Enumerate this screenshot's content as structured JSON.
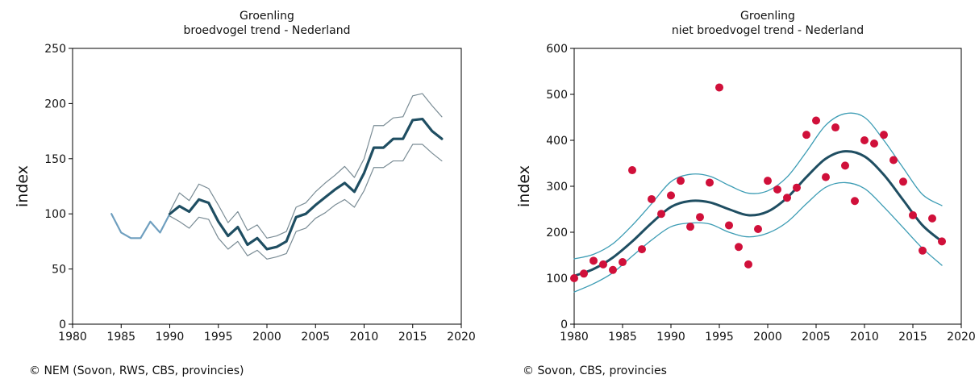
{
  "chart_data": [
    {
      "type": "line",
      "title": "Groenling",
      "subtitle": "broedvogel trend - Nederland",
      "xlabel": "",
      "ylabel": "index",
      "xlim": [
        1980,
        2020
      ],
      "ylim": [
        0,
        250
      ],
      "xticks": [
        1980,
        1985,
        1990,
        1995,
        2000,
        2005,
        2010,
        2015,
        2020
      ],
      "yticks": [
        0,
        50,
        100,
        150,
        200,
        250
      ],
      "grid": false,
      "colors": {
        "pre": "#6f9fbf",
        "index": "#1f4e62",
        "bounds": "#7a8c95"
      },
      "series": [
        {
          "role": "index-early",
          "x": [
            1984,
            1985,
            1986,
            1987,
            1988,
            1989,
            1990
          ],
          "y": [
            100,
            83,
            78,
            78,
            93,
            83,
            100
          ]
        },
        {
          "role": "index",
          "x": [
            1990,
            1991,
            1992,
            1993,
            1994,
            1995,
            1996,
            1997,
            1998,
            1999,
            2000,
            2001,
            2002,
            2003,
            2004,
            2005,
            2006,
            2007,
            2008,
            2009,
            2010,
            2011,
            2012,
            2013,
            2014,
            2015,
            2016,
            2017,
            2018
          ],
          "y": [
            100,
            107,
            102,
            113,
            110,
            93,
            80,
            88,
            72,
            78,
            68,
            70,
            75,
            97,
            100,
            108,
            115,
            122,
            128,
            120,
            137,
            160,
            160,
            168,
            168,
            185,
            186,
            175,
            168
          ]
        },
        {
          "role": "upper",
          "x": [
            1990,
            1991,
            1992,
            1993,
            1994,
            1995,
            1996,
            1997,
            1998,
            1999,
            2000,
            2001,
            2002,
            2003,
            2004,
            2005,
            2006,
            2007,
            2008,
            2009,
            2010,
            2011,
            2012,
            2013,
            2014,
            2015,
            2016,
            2017,
            2018
          ],
          "y": [
            102,
            119,
            112,
            127,
            123,
            108,
            92,
            102,
            85,
            90,
            78,
            80,
            84,
            106,
            110,
            120,
            128,
            135,
            143,
            133,
            150,
            180,
            180,
            187,
            188,
            207,
            209,
            198,
            188
          ]
        },
        {
          "role": "lower",
          "x": [
            1990,
            1991,
            1992,
            1993,
            1994,
            1995,
            1996,
            1997,
            1998,
            1999,
            2000,
            2001,
            2002,
            2003,
            2004,
            2005,
            2006,
            2007,
            2008,
            2009,
            2010,
            2011,
            2012,
            2013,
            2014,
            2015,
            2016,
            2017,
            2018
          ],
          "y": [
            98,
            93,
            87,
            97,
            95,
            78,
            68,
            75,
            62,
            67,
            59,
            61,
            64,
            84,
            87,
            96,
            101,
            108,
            113,
            106,
            121,
            142,
            142,
            148,
            148,
            163,
            163,
            155,
            148
          ]
        }
      ]
    },
    {
      "type": "scatter",
      "title": "Groenling",
      "subtitle": "niet broedvogel trend - Nederland",
      "xlabel": "",
      "ylabel": "index",
      "xlim": [
        1980,
        2020
      ],
      "ylim": [
        0,
        600
      ],
      "xticks": [
        1980,
        1985,
        1990,
        1995,
        2000,
        2005,
        2010,
        2015,
        2020
      ],
      "yticks": [
        0,
        100,
        200,
        300,
        400,
        500,
        600
      ],
      "grid": false,
      "colors": {
        "points": "#d0103a",
        "trend": "#1f4e62",
        "bounds": "#3c9cb4"
      },
      "points": {
        "x": [
          1980,
          1981,
          1982,
          1983,
          1984,
          1985,
          1986,
          1987,
          1988,
          1989,
          1990,
          1991,
          1992,
          1993,
          1994,
          1995,
          1996,
          1997,
          1998,
          1999,
          2000,
          2001,
          2002,
          2003,
          2004,
          2005,
          2006,
          2007,
          2008,
          2009,
          2010,
          2011,
          2012,
          2013,
          2014,
          2015,
          2016,
          2017,
          2018
        ],
        "y": [
          100,
          110,
          138,
          130,
          118,
          135,
          335,
          163,
          272,
          240,
          280,
          312,
          212,
          233,
          308,
          515,
          215,
          168,
          130,
          207,
          312,
          293,
          275,
          297,
          412,
          443,
          320,
          428,
          345,
          268,
          400,
          393,
          412,
          357,
          310,
          237,
          160,
          230,
          180
        ]
      },
      "series": [
        {
          "role": "trend",
          "x": [
            1980,
            1982,
            1984,
            1986,
            1988,
            1990,
            1992,
            1994,
            1996,
            1998,
            2000,
            2002,
            2004,
            2006,
            2008,
            2010,
            2012,
            2014,
            2016,
            2018
          ],
          "y": [
            105,
            120,
            145,
            180,
            220,
            255,
            268,
            265,
            250,
            237,
            245,
            275,
            320,
            360,
            376,
            365,
            325,
            270,
            215,
            180
          ]
        },
        {
          "role": "upper",
          "x": [
            1980,
            1982,
            1984,
            1986,
            1988,
            1990,
            1992,
            1994,
            1996,
            1998,
            2000,
            2002,
            2004,
            2006,
            2008,
            2010,
            2012,
            2014,
            2016,
            2018
          ],
          "y": [
            142,
            152,
            175,
            215,
            262,
            310,
            326,
            322,
            302,
            285,
            290,
            320,
            375,
            433,
            458,
            450,
            400,
            340,
            282,
            258
          ]
        },
        {
          "role": "lower",
          "x": [
            1980,
            1982,
            1984,
            1986,
            1988,
            1990,
            1992,
            1994,
            1996,
            1998,
            2000,
            2002,
            2004,
            2006,
            2008,
            2010,
            2012,
            2014,
            2016,
            2018
          ],
          "y": [
            70,
            88,
            112,
            148,
            183,
            212,
            220,
            218,
            200,
            190,
            198,
            222,
            262,
            298,
            308,
            295,
            255,
            210,
            165,
            128
          ]
        }
      ]
    }
  ],
  "credits": {
    "left": "© NEM (Sovon, RWS, CBS, provincies)",
    "right": "© Sovon, CBS, provincies"
  }
}
